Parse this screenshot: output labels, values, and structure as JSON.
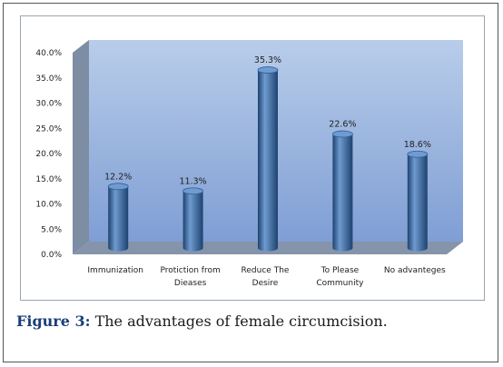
{
  "caption": {
    "label": "Figure 3:",
    "text": " The advantages of female circumcision."
  },
  "chart_data": {
    "type": "bar",
    "categories": [
      [
        "Immunization"
      ],
      [
        "Protiction from",
        "Dieases"
      ],
      [
        "Reduce The",
        "Desire"
      ],
      [
        "To Please",
        "Community"
      ],
      [
        "No advanteges"
      ]
    ],
    "values": [
      12.2,
      11.3,
      35.3,
      22.6,
      18.6
    ],
    "value_labels": [
      "12.2%",
      "11.3%",
      "35.3%",
      "22.6%",
      "18.6%"
    ],
    "y_ticks": [
      "0.0%",
      "5.0%",
      "10.0%",
      "15.0%",
      "20.0%",
      "25.0%",
      "30.0%",
      "35.0%",
      "40.0%"
    ],
    "ylim": [
      0,
      40
    ],
    "grid": false,
    "legend": "none",
    "style": "3d-cylinder",
    "colors": {
      "bar": "#2e5f98",
      "bar_light": "#6f9bd0",
      "bar_dark": "#1d426f",
      "wall_top": "#b9cdea",
      "wall_bottom": "#7f9ed4",
      "side_wall": "#7d8da3",
      "floor": "#8594aa"
    }
  }
}
